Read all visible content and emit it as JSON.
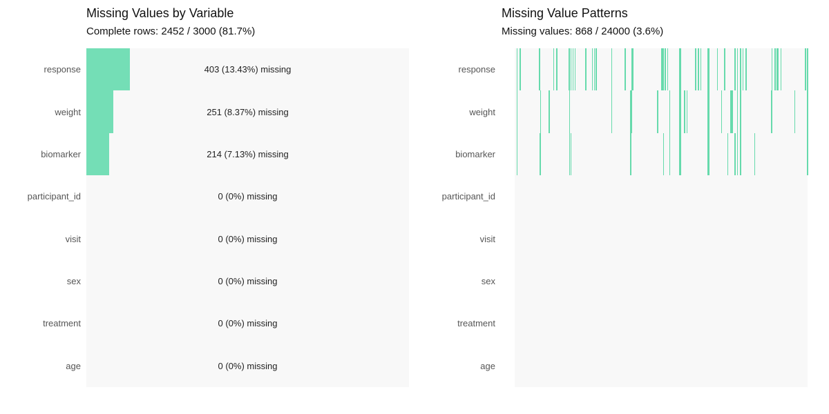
{
  "colors": {
    "bar_fill": "#74DEB6",
    "pattern_line": "#66DAAC",
    "panel_background": "#F8F8F8",
    "axis_label": "#555555",
    "annotation_text": "#222222",
    "title_text": "#111111"
  },
  "chart_data": [
    {
      "type": "bar",
      "orientation": "horizontal",
      "title": "Missing Values by Variable",
      "subtitle": "Complete rows: 2452 / 3000 (81.7%)",
      "categories": [
        "response",
        "weight",
        "biomarker",
        "participant_id",
        "visit",
        "sex",
        "treatment",
        "age"
      ],
      "values": [
        403,
        251,
        214,
        0,
        0,
        0,
        0,
        0
      ],
      "labels": [
        "403 (13.43%) missing",
        "251 (8.37%) missing",
        "214 (7.13%) missing",
        "0 (0%) missing",
        "0 (0%) missing",
        "0 (0%) missing",
        "0 (0%) missing",
        "0 (0%) missing"
      ],
      "xlim": [
        0,
        3000
      ],
      "total_rows": 3000,
      "complete_rows": 2452,
      "complete_pct": "81.7%",
      "grid": false,
      "legend": "none"
    },
    {
      "type": "heatmap",
      "title": "Missing Value Patterns",
      "subtitle": "Missing values: 868 / 24000 (3.6%)",
      "categories": [
        "response",
        "weight",
        "biomarker",
        "participant_id",
        "visit",
        "sex",
        "treatment",
        "age"
      ],
      "missing_total": 868,
      "cells_total": 24000,
      "missing_pct": "3.6%",
      "grid": false,
      "legend": "none",
      "rows": [
        {
          "name": "response",
          "lines": [
            [
              0.007,
              1.5
            ],
            [
              0.017,
              1.5
            ],
            [
              0.083,
              1.5
            ],
            [
              0.132,
              1.5
            ],
            [
              0.142,
              1.5
            ],
            [
              0.184,
              1.5
            ],
            [
              0.191,
              1.5
            ],
            [
              0.198,
              1.5
            ],
            [
              0.205,
              1.5
            ],
            [
              0.241,
              1.5
            ],
            [
              0.264,
              1.5
            ],
            [
              0.271,
              1.5
            ],
            [
              0.276,
              1.5
            ],
            [
              0.33,
              1.5
            ],
            [
              0.375,
              1.5
            ],
            [
              0.399,
              3
            ],
            [
              0.5,
              1.5
            ],
            [
              0.505,
              1.5
            ],
            [
              0.512,
              1.5
            ],
            [
              0.521,
              1.5
            ],
            [
              0.561,
              3
            ],
            [
              0.616,
              1.5
            ],
            [
              0.625,
              1.5
            ],
            [
              0.634,
              1.5
            ],
            [
              0.658,
              3
            ],
            [
              0.691,
              1.5
            ],
            [
              0.715,
              1.5
            ],
            [
              0.75,
              1.5
            ],
            [
              0.759,
              1.5
            ],
            [
              0.769,
              1.5
            ],
            [
              0.778,
              1.5
            ],
            [
              0.788,
              1.5
            ],
            [
              0.877,
              1.5
            ],
            [
              0.887,
              1.5
            ],
            [
              0.894,
              3
            ],
            [
              0.908,
              1.5
            ],
            [
              0.991,
              1.5
            ],
            [
              0.998,
              1.5
            ]
          ]
        },
        {
          "name": "weight",
          "lines": [
            [
              0.007,
              1.5
            ],
            [
              0.087,
              1.5
            ],
            [
              0.116,
              1.5
            ],
            [
              0.186,
              1.5
            ],
            [
              0.33,
              1.5
            ],
            [
              0.394,
              3
            ],
            [
              0.486,
              1.5
            ],
            [
              0.528,
              1.5
            ],
            [
              0.561,
              3
            ],
            [
              0.578,
              1.5
            ],
            [
              0.587,
              1.5
            ],
            [
              0.658,
              3
            ],
            [
              0.705,
              1.5
            ],
            [
              0.736,
              1.5
            ],
            [
              0.741,
              1.5
            ],
            [
              0.759,
              1.5
            ],
            [
              0.769,
              1.5
            ],
            [
              0.875,
              1.5
            ],
            [
              0.955,
              1.5
            ],
            [
              0.998,
              1.5
            ]
          ]
        },
        {
          "name": "biomarker",
          "lines": [
            [
              0.007,
              1.5
            ],
            [
              0.085,
              1.5
            ],
            [
              0.186,
              1.5
            ],
            [
              0.191,
              1.5
            ],
            [
              0.394,
              1.5
            ],
            [
              0.507,
              1.5
            ],
            [
              0.528,
              1.5
            ],
            [
              0.561,
              3
            ],
            [
              0.658,
              3
            ],
            [
              0.726,
              1.5
            ],
            [
              0.75,
              1.5
            ],
            [
              0.759,
              1.5
            ],
            [
              0.769,
              1.5
            ],
            [
              0.818,
              1.5
            ],
            [
              0.998,
              1.5
            ]
          ]
        },
        {
          "name": "participant_id",
          "lines": []
        },
        {
          "name": "visit",
          "lines": []
        },
        {
          "name": "sex",
          "lines": []
        },
        {
          "name": "treatment",
          "lines": []
        },
        {
          "name": "age",
          "lines": []
        }
      ]
    }
  ]
}
